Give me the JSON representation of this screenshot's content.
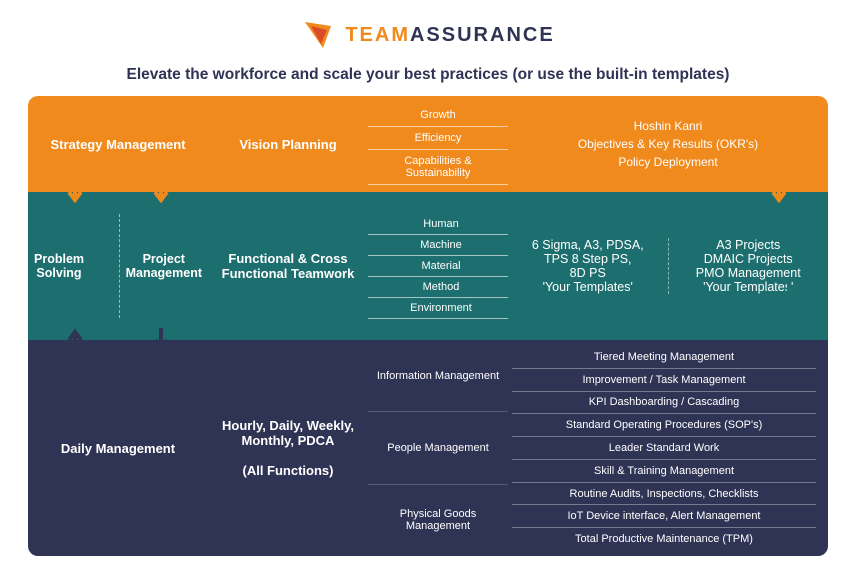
{
  "logo": {
    "team": "TEAM",
    "assurance": "ASSURANCE"
  },
  "subtitle": "Elevate the workforce and scale your best practices (or use the built-in templates)",
  "colors": {
    "orange": "#f08a1d",
    "teal": "#1d6e6e",
    "navy": "#2f3354",
    "white": "#ffffff"
  },
  "row1": {
    "colA_left": "Strategy Management",
    "colB": "Vision Planning",
    "colC": [
      "Growth",
      "Efficiency",
      "Capabilities & Sustainability"
    ],
    "colD": "Hoshin Kanri\nObjectives & Key Results (OKR's)\nPolicy Deployment"
  },
  "row2": {
    "colA_left": "Problem Solving",
    "colA_right": "Project Management",
    "colB": "Functional & Cross Functional Teamwork",
    "colC": [
      "Human",
      "Machine",
      "Material",
      "Method",
      "Environment"
    ],
    "colD_left": "6 Sigma, A3, PDSA,\nTPS 8 Step PS,\n8D PS\n'Your Templates'",
    "colD_right": "A3 Projects\nDMAIC Projects\nPMO Management\n'Your Templates'"
  },
  "row3": {
    "colA": "Daily Management",
    "colB": "Hourly, Daily, Weekly, Monthly, PDCA\n\n(All Functions)",
    "groups": [
      {
        "label": "Information Management",
        "items": [
          "Tiered Meeting Management",
          "Improvement / Task Management",
          "KPI Dashboarding / Cascading"
        ]
      },
      {
        "label": "People Management",
        "items": [
          "Standard Operating Procedures (SOP's)",
          "Leader Standard Work",
          "Skill & Training Management"
        ]
      },
      {
        "label": "Physical Goods Management",
        "items": [
          "Routine Audits, Inspections, Checklists",
          "IoT Device interface, Alert Management",
          "Total Productive Maintenance (TPM)"
        ]
      }
    ]
  }
}
